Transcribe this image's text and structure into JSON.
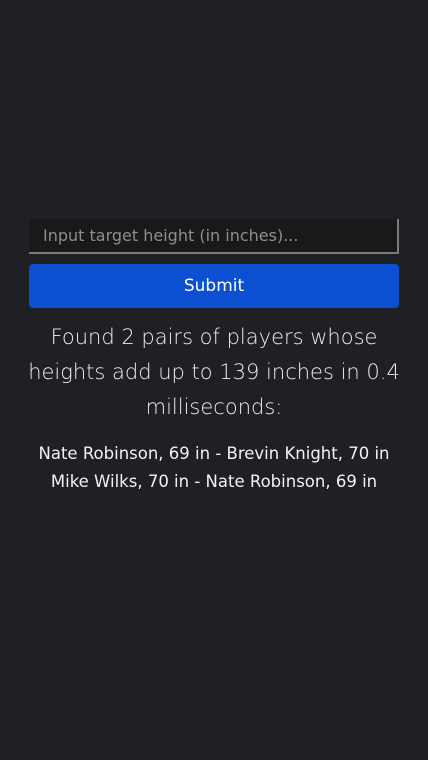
{
  "form": {
    "input_placeholder": "Input target height (in inches)...",
    "input_value": "",
    "submit_label": "Submit"
  },
  "result": {
    "summary": "Found 2 pairs of players whose heights add up to 139 inches in 0.4 milliseconds:",
    "pairs": [
      "Nate Robinson, 69 in - Brevin Knight, 70 in",
      "Mike Wilks, 70 in - Nate Robinson, 69 in"
    ]
  },
  "colors": {
    "background": "#1f2023",
    "input_background": "#18191b",
    "button": "#0a50d0",
    "text": "#e9e9e9"
  }
}
